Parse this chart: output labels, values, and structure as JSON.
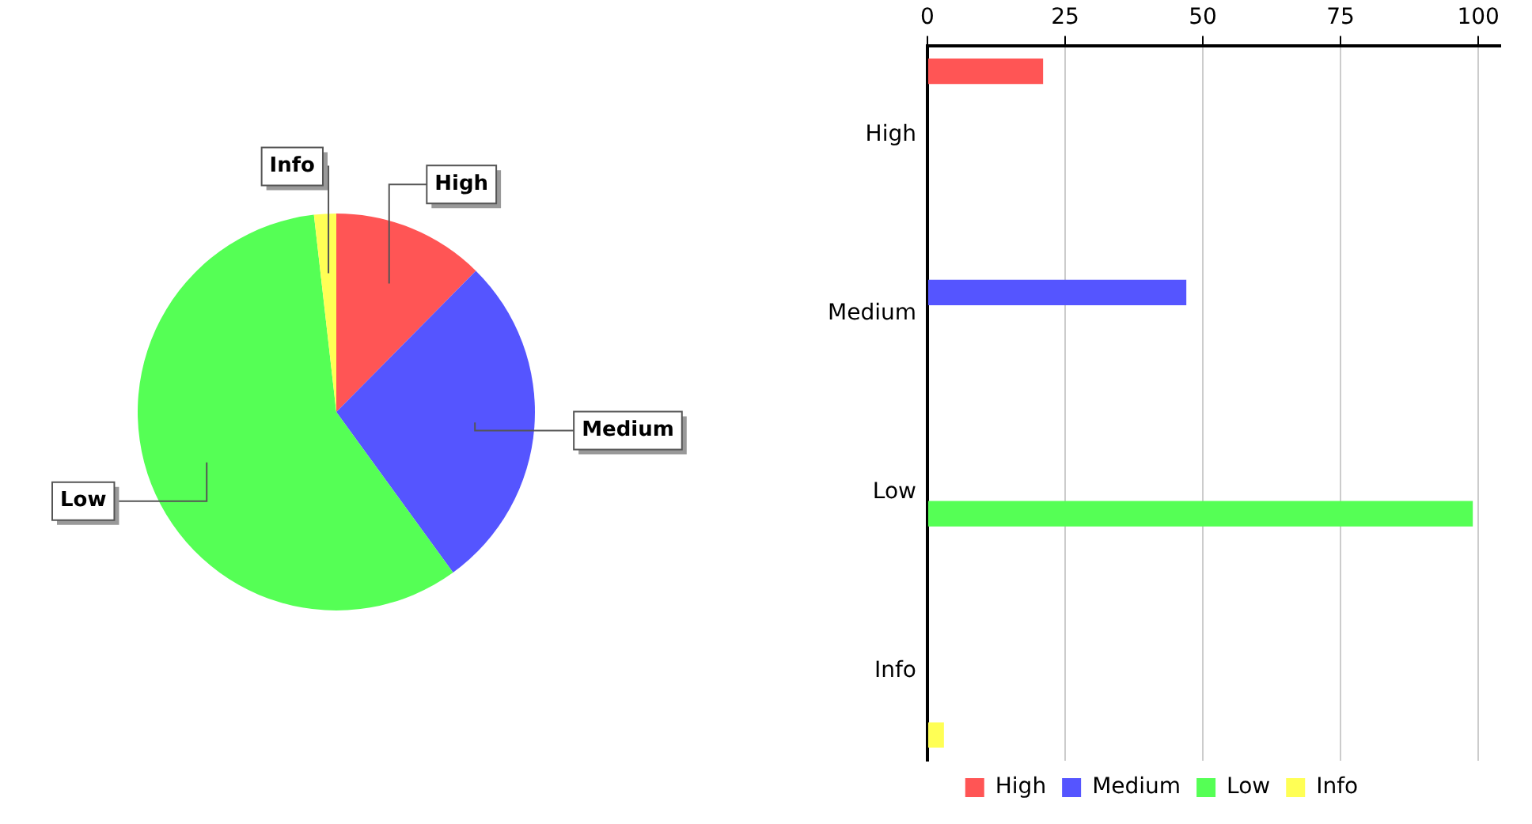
{
  "chart_data": [
    {
      "type": "pie",
      "categories": [
        "High",
        "Medium",
        "Low",
        "Info"
      ],
      "values": [
        12.4,
        27.6,
        58.2,
        1.8
      ],
      "colors": [
        "#ff5555",
        "#5555ff",
        "#55ff55",
        "#ffff55"
      ],
      "legend": false
    },
    {
      "type": "bar",
      "orientation": "horizontal",
      "categories": [
        "High",
        "Medium",
        "Low",
        "Info"
      ],
      "series": [
        {
          "name": "High",
          "color": "#ff5555",
          "values": [
            21,
            null,
            null,
            null
          ]
        },
        {
          "name": "Medium",
          "color": "#5555ff",
          "values": [
            null,
            47,
            null,
            null
          ]
        },
        {
          "name": "Low",
          "color": "#55ff55",
          "values": [
            null,
            null,
            99,
            null
          ]
        },
        {
          "name": "Info",
          "color": "#ffff55",
          "values": [
            null,
            null,
            null,
            3
          ]
        }
      ],
      "xlim": [
        0,
        104
      ],
      "xticks": [
        0,
        25,
        50,
        75,
        100
      ],
      "grid": "x",
      "legend": "bottom"
    }
  ]
}
